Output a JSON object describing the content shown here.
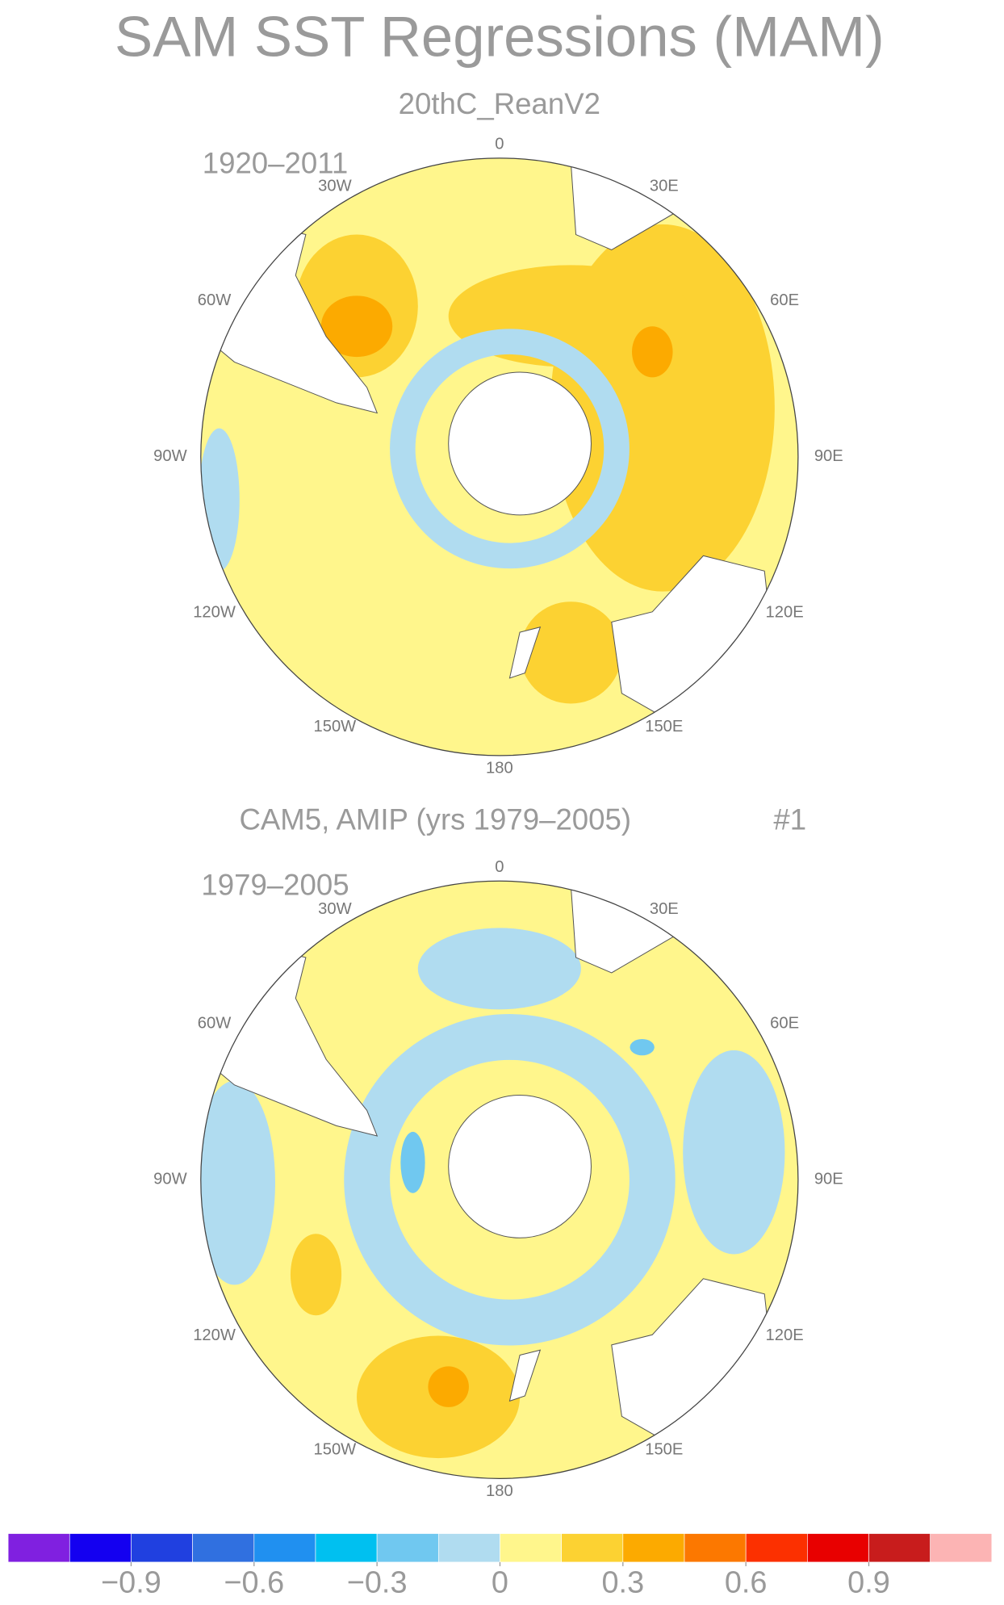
{
  "title": "SAM SST Regressions (MAM)",
  "maps": [
    {
      "title": "20thC_ReanV2",
      "period": "1920–2011"
    },
    {
      "title": "CAM5, AMIP (yrs 1979–2005)",
      "note": "#1",
      "period": "1979–2005"
    }
  ],
  "longitude_labels": [
    "0",
    "30E",
    "60E",
    "90E",
    "120E",
    "150E",
    "180",
    "150W",
    "120W",
    "90W",
    "60W",
    "30W"
  ],
  "colorbar": {
    "lim": [
      -1.2,
      1.2
    ],
    "colors": [
      "#8020e0",
      "#1400f0",
      "#2040e0",
      "#3070e0",
      "#2090f0",
      "#00c0f0",
      "#70c8f0",
      "#b0dcf0",
      "#fff68c",
      "#fcd232",
      "#fcaa00",
      "#fc7800",
      "#fc3000",
      "#e80000",
      "#c81c1c",
      "#fcb4b4"
    ],
    "ticks": [
      {
        "value": -0.9,
        "label": "−0.9"
      },
      {
        "value": -0.6,
        "label": "−0.6"
      },
      {
        "value": -0.3,
        "label": "−0.3"
      },
      0,
      0.3,
      0.6,
      0.9
    ]
  }
}
